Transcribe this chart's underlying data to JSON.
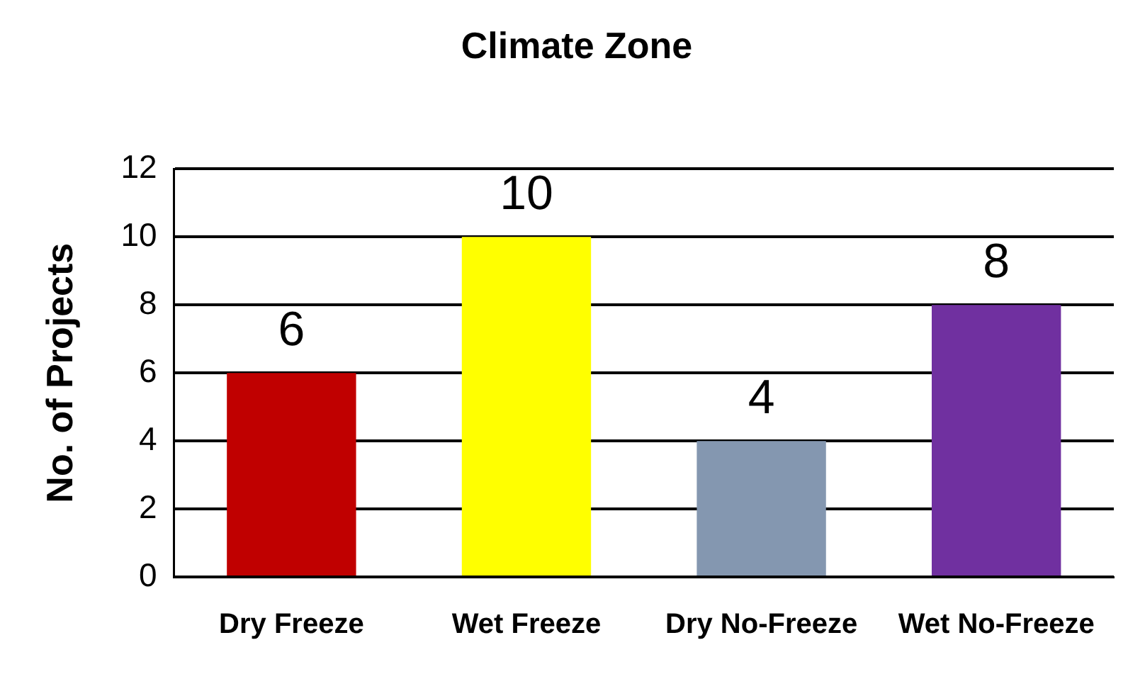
{
  "chart_data": {
    "type": "bar",
    "title": "Climate Zone",
    "ylabel": "No. of Projects",
    "categories": [
      "Dry Freeze",
      "Wet Freeze",
      "Dry No-Freeze",
      "Wet No-Freeze"
    ],
    "values": [
      6,
      10,
      4,
      8
    ],
    "colors": [
      "#c00000",
      "#ffff00",
      "#8497b0",
      "#7030a0"
    ],
    "ylim": [
      0,
      12
    ],
    "yticks": [
      0,
      2,
      4,
      6,
      8,
      10,
      12
    ],
    "grid": "y",
    "data_labels": true,
    "legend": false
  }
}
